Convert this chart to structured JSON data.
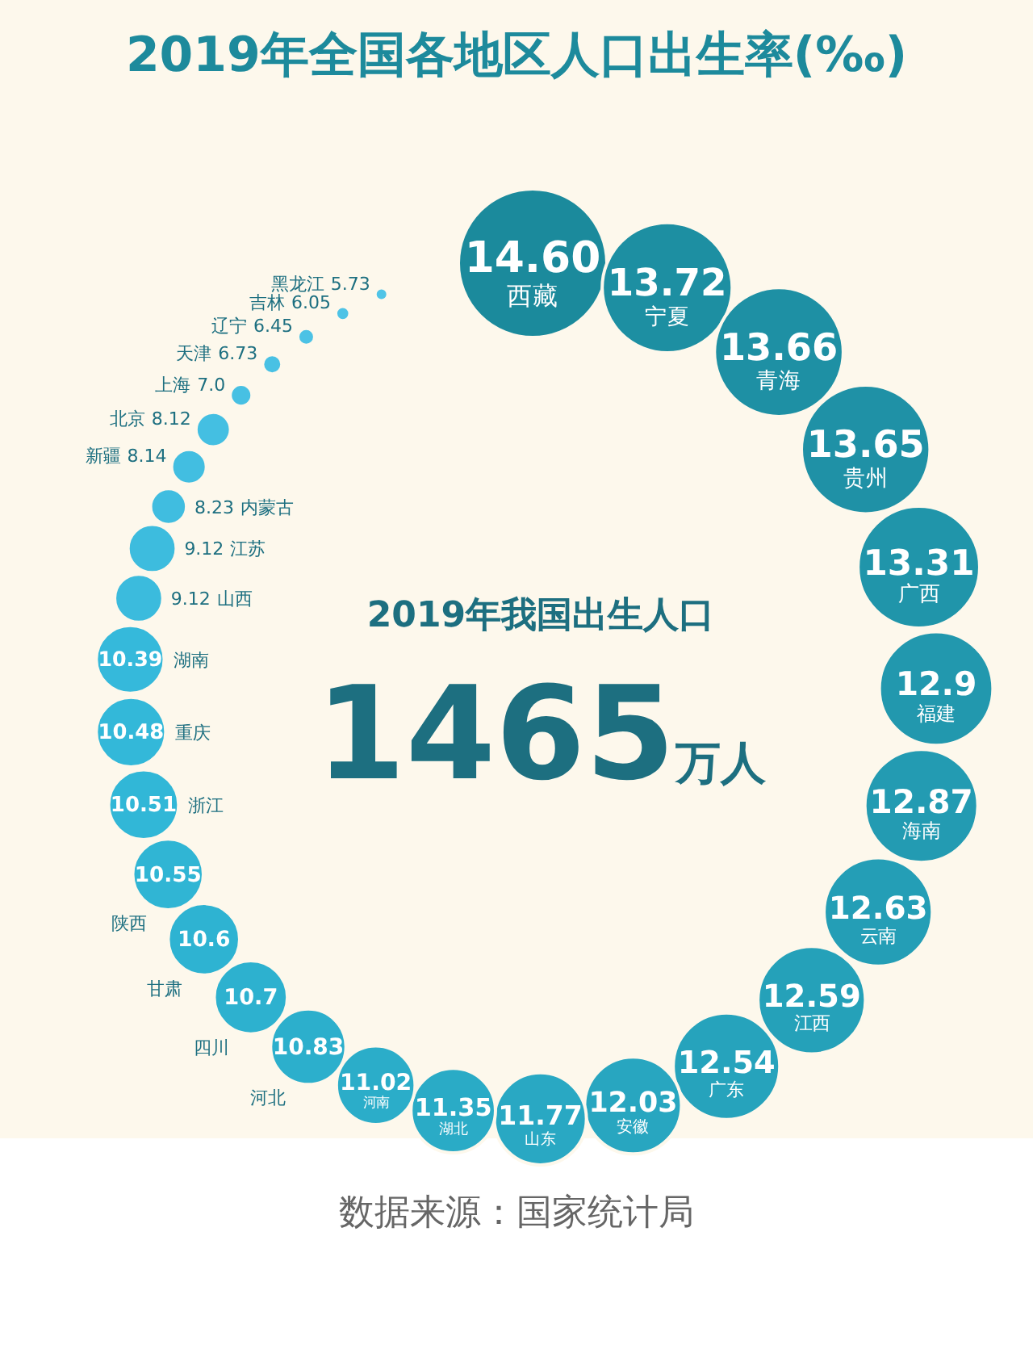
{
  "chart_data": {
    "type": "other",
    "title": "2019年全国各地区人口出生率(‰)",
    "categories": [
      "西藏",
      "宁夏",
      "青海",
      "贵州",
      "广西",
      "福建",
      "海南",
      "云南",
      "江西",
      "广东",
      "安徽",
      "山东",
      "湖北",
      "河南",
      "河北",
      "四川",
      "甘肃",
      "陕西",
      "浙江",
      "重庆",
      "湖南",
      "山西",
      "江苏",
      "内蒙古",
      "新疆",
      "北京",
      "上海",
      "天津",
      "辽宁",
      "吉林",
      "黑龙江"
    ],
    "values": [
      14.6,
      13.72,
      13.66,
      13.65,
      13.31,
      12.9,
      12.87,
      12.63,
      12.59,
      12.54,
      12.03,
      11.77,
      11.35,
      11.02,
      10.83,
      10.7,
      10.6,
      10.55,
      10.51,
      10.48,
      10.39,
      9.12,
      9.12,
      8.23,
      8.14,
      8.12,
      7.0,
      6.73,
      6.45,
      6.05,
      5.73
    ],
    "value_labels": [
      "14.60",
      "13.72",
      "13.66",
      "13.65",
      "13.31",
      "12.9",
      "12.87",
      "12.63",
      "12.59",
      "12.54",
      "12.03",
      "11.77",
      "11.35",
      "11.02",
      "10.83",
      "10.7",
      "10.6",
      "10.55",
      "10.51",
      "10.48",
      "10.39",
      "9.12",
      "9.12",
      "8.23",
      "8.14",
      "8.12",
      "7.0",
      "6.73",
      "6.45",
      "6.05",
      "5.73"
    ],
    "colors": [
      "#1b8a9c",
      "#1d8fa2",
      "#1e90a4",
      "#1f91a6",
      "#2095aa",
      "#2298ae",
      "#239bb2",
      "#249eb6",
      "#25a1b9",
      "#26a3bc",
      "#28a6c0",
      "#29a8c3",
      "#2aabc6",
      "#2badc9",
      "#2cafcc",
      "#2db1cf",
      "#2eb3d2",
      "#30b5d4",
      "#31b7d7",
      "#33b8d9",
      "#35b9db",
      "#3bbbdd",
      "#3dbcde",
      "#40bde0",
      "#42bee1",
      "#44bfe2",
      "#47c0e3",
      "#49c1e4",
      "#4cc2e5",
      "#4ec3e6",
      "#50c4e7"
    ],
    "annotations": [
      "2019年我国出生人口",
      "1465万人",
      "数据来源：国家统计局"
    ]
  }
}
